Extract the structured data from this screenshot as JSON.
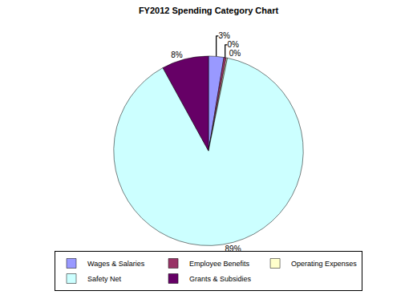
{
  "chart_data": {
    "type": "pie",
    "title": "FY2012 Spending Category Chart",
    "categories": [
      "Wages & Salaries",
      "Employee Benefits",
      "Operating Expenses",
      "Safety Net",
      "Grants & Subsidies"
    ],
    "values": [
      2.6,
      0.4,
      0.2,
      88.8,
      8.0
    ],
    "value_labels": [
      "3%",
      "0%",
      "0%",
      "89%",
      "8%"
    ],
    "colors": [
      "#9999ff",
      "#993366",
      "#ffffcc",
      "#ccffff",
      "#660066"
    ],
    "data_labels": true,
    "legend": "bottom"
  }
}
